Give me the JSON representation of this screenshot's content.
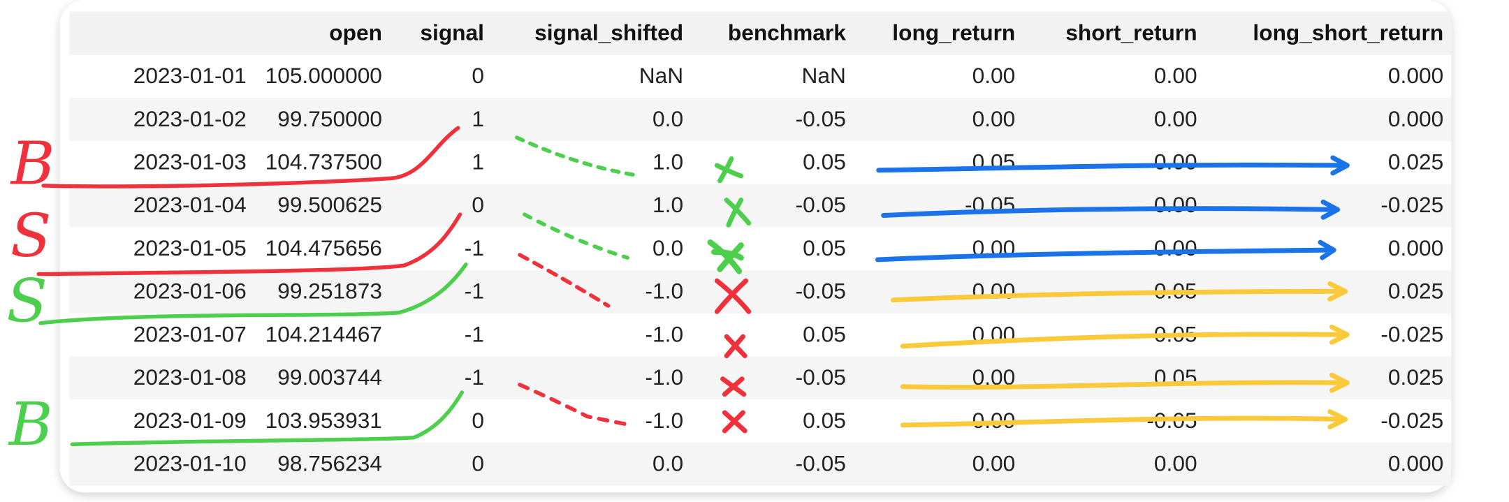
{
  "table": {
    "columns": [
      "open",
      "signal",
      "signal_shifted",
      "benchmark",
      "long_return",
      "short_return",
      "long_short_return"
    ],
    "rows": [
      [
        "2023-01-01",
        "105.000000",
        "0",
        "NaN",
        "NaN",
        "0.00",
        "0.00",
        "0.000"
      ],
      [
        "2023-01-02",
        "99.750000",
        "1",
        "0.0",
        "-0.05",
        "0.00",
        "0.00",
        "0.000"
      ],
      [
        "2023-01-03",
        "104.737500",
        "1",
        "1.0",
        "0.05",
        "0.05",
        "0.00",
        "0.025"
      ],
      [
        "2023-01-04",
        "99.500625",
        "0",
        "1.0",
        "-0.05",
        "-0.05",
        "0.00",
        "-0.025"
      ],
      [
        "2023-01-05",
        "104.475656",
        "-1",
        "0.0",
        "0.05",
        "0.00",
        "0.00",
        "0.000"
      ],
      [
        "2023-01-06",
        "99.251873",
        "-1",
        "-1.0",
        "-0.05",
        "0.00",
        "0.05",
        "0.025"
      ],
      [
        "2023-01-07",
        "104.214467",
        "-1",
        "-1.0",
        "0.05",
        "0.00",
        "-0.05",
        "-0.025"
      ],
      [
        "2023-01-08",
        "99.003744",
        "-1",
        "-1.0",
        "-0.05",
        "0.00",
        "0.05",
        "0.025"
      ],
      [
        "2023-01-09",
        "103.953931",
        "0",
        "-1.0",
        "0.05",
        "0.00",
        "-0.05",
        "-0.025"
      ],
      [
        "2023-01-10",
        "98.756234",
        "0",
        "0.0",
        "-0.05",
        "0.00",
        "0.00",
        "0.000"
      ]
    ]
  },
  "annotations": [
    "B",
    "S",
    "S",
    "B"
  ]
}
